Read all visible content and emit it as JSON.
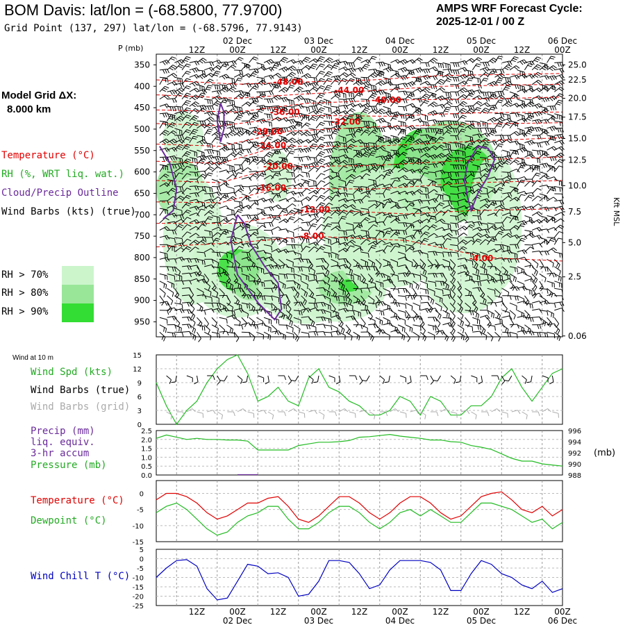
{
  "header": {
    "title": "BOM Davis:  lat/lon = (-68.5800, 77.9700)",
    "subtitle": "Grid Point (137, 297) lat/lon = (-68.5796, 77.9143)",
    "cycle_line1": "AMPS WRF Forecast Cycle:",
    "cycle_line2": "2025-12-01 / 00  Z"
  },
  "model_grid": {
    "line1": "Model Grid ΔX:",
    "line2": "8.000 km"
  },
  "legend": {
    "temperature": "Temperature (°C)",
    "rh": "RH (%, WRT liq. wat.)",
    "cloud": "Cloud/Precip Outline",
    "wind": "Wind Barbs (kts) (true)",
    "rh70": "RH > 70%",
    "rh80": "RH > 80%",
    "rh90": "RH > 90%"
  },
  "colors": {
    "temperature": "#e00000",
    "rh": "#22bb22",
    "cloud": "#6a2a9a",
    "rh70": "#ccf5cc",
    "rh80": "#99e699",
    "rh90": "#33dd33",
    "windchill": "#0000c0",
    "gray": "#aaaaaa"
  },
  "time_axis": {
    "tick_labels": [
      "12Z",
      "00Z",
      "12Z",
      "00Z",
      "12Z",
      "00Z",
      "12Z",
      "00Z",
      "12Z",
      "00Z"
    ],
    "date_labels": [
      "02 Dec",
      "03 Dec",
      "04 Dec",
      "05 Dec",
      "06 Dec"
    ],
    "start_hour": 6,
    "end_hour": 126
  },
  "chart_data": [
    {
      "type": "cross-section",
      "title": "Time-height cross section",
      "ylabel": "P (mb)",
      "pressure_levels": [
        350,
        400,
        450,
        500,
        550,
        600,
        650,
        700,
        750,
        800,
        850,
        900,
        950
      ],
      "plim": [
        325,
        985
      ],
      "right_axis_label": "Kft MSL",
      "height_ticks": [
        {
          "label": "25.0",
          "p": 350
        },
        {
          "label": "22.5",
          "p": 385
        },
        {
          "label": "20.0",
          "p": 428
        },
        {
          "label": "17.5",
          "p": 472
        },
        {
          "label": "15.0",
          "p": 522
        },
        {
          "label": "12.5",
          "p": 572
        },
        {
          "label": "10.0",
          "p": 632
        },
        {
          "label": "7.5",
          "p": 693
        },
        {
          "label": "5.0",
          "p": 765
        },
        {
          "label": "2.5",
          "p": 845
        },
        {
          "label": "0.06",
          "p": 983
        }
      ],
      "temperature_labels": [
        {
          "text": "-48.00",
          "hour": 45,
          "p": 390
        },
        {
          "text": "-44.00",
          "hour": 63,
          "p": 409
        },
        {
          "text": "-40.00",
          "hour": 74,
          "p": 432
        },
        {
          "text": "-36.00",
          "hour": 44,
          "p": 460
        },
        {
          "text": "-32.00",
          "hour": 62,
          "p": 483
        },
        {
          "text": "-28.00",
          "hour": 39,
          "p": 506
        },
        {
          "text": "-24.00",
          "hour": 40,
          "p": 538
        },
        {
          "text": "-20.00",
          "hour": 42,
          "p": 587
        },
        {
          "text": "-16.00",
          "hour": 40,
          "p": 637
        },
        {
          "text": "-12.00",
          "hour": 53,
          "p": 688
        },
        {
          "text": "-8.00",
          "hour": 52,
          "p": 750
        },
        {
          "text": "-4.00",
          "hour": 102,
          "p": 802
        }
      ]
    },
    {
      "type": "line",
      "title": "Wind at 10 m",
      "series": [
        {
          "name": "Wind Spd (kts)",
          "x": [
            6,
            9,
            12,
            15,
            18,
            21,
            24,
            27,
            30,
            33,
            36,
            39,
            42,
            45,
            48,
            51,
            54,
            57,
            60,
            63,
            66,
            69,
            72,
            75,
            78,
            81,
            84,
            87,
            90,
            93,
            96,
            99,
            102,
            105,
            108,
            111,
            114,
            117,
            120,
            123,
            126
          ],
          "values": [
            9,
            4,
            0,
            3,
            5,
            9,
            12,
            14,
            15,
            11,
            5,
            6,
            8,
            5,
            4,
            10,
            12,
            8,
            7,
            5,
            4,
            2,
            2,
            3,
            6,
            5,
            2,
            6,
            5,
            2,
            2,
            4,
            4,
            6,
            10,
            12,
            8,
            5,
            8,
            11,
            12
          ]
        }
      ],
      "ylim": [
        0,
        15
      ],
      "yticks": [
        0,
        3,
        6,
        9,
        12,
        15
      ],
      "legend": [
        "Wind Spd (kts)",
        "Wind Barbs (true)",
        "Wind Barbs (grid)"
      ]
    },
    {
      "type": "line",
      "title": "Precip / Pressure",
      "series": [
        {
          "name": "Pressure (mb)",
          "x": [
            6,
            9,
            12,
            15,
            18,
            21,
            24,
            27,
            30,
            33,
            36,
            39,
            42,
            45,
            48,
            51,
            54,
            57,
            60,
            63,
            66,
            69,
            72,
            75,
            78,
            81,
            84,
            87,
            90,
            93,
            96,
            99,
            102,
            105,
            108,
            111,
            114,
            117,
            120,
            123,
            126
          ],
          "values": [
            994.6,
            995.2,
            994.8,
            994.4,
            994.6,
            994.4,
            994.4,
            994.3,
            994.3,
            994.1,
            992.5,
            992.5,
            992.5,
            992.5,
            993.3,
            993.6,
            993.9,
            993.9,
            994.0,
            994.2,
            994.8,
            994.9,
            995.1,
            995.3,
            995.0,
            994.8,
            994.6,
            994.3,
            994.3,
            994.0,
            993.9,
            993.3,
            993.0,
            992.6,
            991.8,
            991.0,
            990.5,
            990.5,
            990.0,
            989.8,
            989.6
          ]
        },
        {
          "name": "Precip (mm) liq. equiv. 3-hr accum",
          "x": [
            30,
            36
          ],
          "values": [
            0.02,
            0.02
          ]
        }
      ],
      "left_ylim": [
        0,
        2.5
      ],
      "left_yticks": [
        "0.0",
        "0.5",
        "1.0",
        "1.5",
        "2.0",
        "2.5"
      ],
      "right_ylim": [
        988,
        996
      ],
      "right_yticks": [
        988,
        990,
        992,
        994,
        996
      ],
      "right_unit": "(mb)",
      "legend": [
        "Precip (mm)",
        "liq. equiv.",
        "3-hr accum",
        "Pressure (mb)"
      ]
    },
    {
      "type": "line",
      "title": "Temperature / Dewpoint",
      "series": [
        {
          "name": "Temperature (°C)",
          "x": [
            6,
            9,
            12,
            15,
            18,
            21,
            24,
            27,
            30,
            33,
            36,
            39,
            42,
            45,
            48,
            51,
            54,
            57,
            60,
            63,
            66,
            69,
            72,
            75,
            78,
            81,
            84,
            87,
            90,
            93,
            96,
            99,
            102,
            105,
            108,
            111,
            114,
            117,
            120,
            123,
            126
          ],
          "values": [
            -2,
            0,
            0,
            -1,
            -3,
            -6,
            -8,
            -7,
            -5,
            -3,
            -3,
            -1.5,
            -1,
            -4,
            -8,
            -9,
            -7,
            -4,
            -1,
            -1,
            -3,
            -6,
            -8,
            -6,
            -3,
            -1,
            -1,
            -3,
            -6,
            -8,
            -7,
            -4,
            -1,
            0,
            0.5,
            -2,
            -5,
            -6,
            -4,
            -7,
            -5
          ]
        },
        {
          "name": "Dewpoint (°C)",
          "x": [
            6,
            9,
            12,
            15,
            18,
            21,
            24,
            27,
            30,
            33,
            36,
            39,
            42,
            45,
            48,
            51,
            54,
            57,
            60,
            63,
            66,
            69,
            72,
            75,
            78,
            81,
            84,
            87,
            90,
            93,
            96,
            99,
            102,
            105,
            108,
            111,
            114,
            117,
            120,
            123,
            126
          ],
          "values": [
            -6,
            -4,
            -3,
            -5,
            -8,
            -11,
            -13,
            -12,
            -9,
            -7,
            -6,
            -4,
            -4,
            -8,
            -11,
            -11,
            -9,
            -6,
            -4,
            -4,
            -6,
            -9,
            -11,
            -9,
            -6,
            -5,
            -7,
            -5,
            -7,
            -9,
            -9,
            -6,
            -3,
            -3,
            -4,
            -5,
            -7,
            -9,
            -8,
            -11,
            -9
          ]
        }
      ],
      "ylim": [
        -15,
        4
      ],
      "yticks": [
        0,
        -5,
        -10,
        -15
      ],
      "legend": [
        "Temperature (°C)",
        "Dewpoint (°C)"
      ]
    },
    {
      "type": "line",
      "title": "Wind Chill",
      "series": [
        {
          "name": "Wind Chill T (°C)",
          "x": [
            6,
            9,
            12,
            15,
            18,
            21,
            24,
            27,
            30,
            33,
            36,
            39,
            42,
            45,
            48,
            51,
            54,
            57,
            60,
            63,
            66,
            69,
            72,
            75,
            78,
            81,
            84,
            87,
            90,
            93,
            96,
            99,
            102,
            105,
            108,
            111,
            114,
            117,
            120,
            123,
            126
          ],
          "values": [
            -10,
            -5,
            -1,
            -0.5,
            -4,
            -16,
            -22,
            -21,
            -12,
            -3,
            -4,
            -8,
            -7.5,
            -10,
            -20,
            -19,
            -12,
            -1,
            -1,
            -2,
            -8,
            -16,
            -14,
            -6,
            -1,
            -1,
            -1,
            -2,
            -6,
            -17,
            -17,
            -8,
            -1,
            -3,
            -8,
            -10,
            -14,
            -16,
            -12,
            -18,
            -16
          ]
        }
      ],
      "ylim": [
        -25,
        5
      ],
      "yticks": [
        5,
        0,
        -5,
        -10,
        -15,
        -20,
        -25
      ],
      "legend": [
        "Wind Chill T (°C)"
      ]
    }
  ],
  "panel_labels": {
    "wind10m": "Wind at 10 m",
    "wind_spd": "Wind Spd (kts)",
    "barbs_true": "Wind Barbs (true)",
    "barbs_grid": "Wind Barbs (grid)",
    "precip1": "Precip (mm)",
    "precip2": "liq. equiv.",
    "precip3": "3-hr accum",
    "pressure": "Pressure (mb)",
    "temp": "Temperature (°C)",
    "dew": "Dewpoint (°C)",
    "windchill": "Wind Chill T (°C)",
    "pmb": "P (mb)",
    "kft": "Kft MSL",
    "mb_unit": "(mb)"
  }
}
